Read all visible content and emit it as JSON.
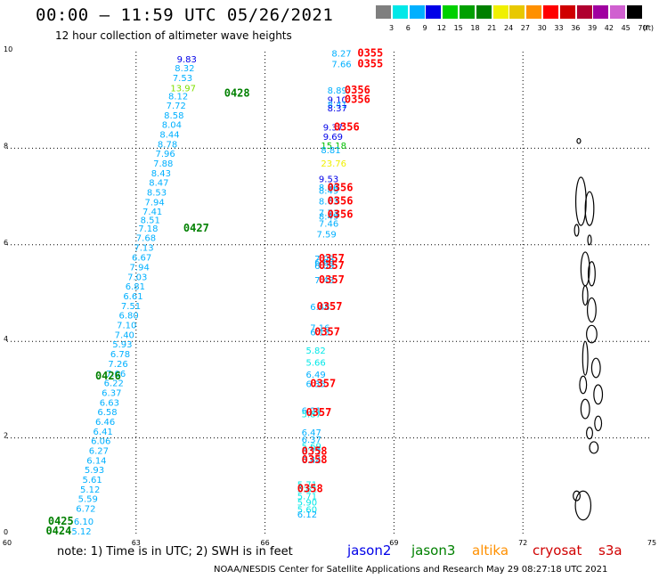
{
  "header": {
    "title": "00:00 – 11:59 UTC 05/26/2021",
    "subtitle": "12 hour collection of altimeter wave heights"
  },
  "color_scale": {
    "labels": [
      "3",
      "6",
      "9",
      "12",
      "15",
      "18",
      "21",
      "24",
      "27",
      "30",
      "33",
      "36",
      "39",
      "42",
      "45",
      "70"
    ],
    "unit": "(ft)",
    "colors": [
      "#7f7f7f",
      "#00e8e8",
      "#00b0ff",
      "#0000e8",
      "#00d000",
      "#00a000",
      "#008000",
      "#f0f000",
      "#e8c800",
      "#ff9000",
      "#ff0000",
      "#d00000",
      "#b00030",
      "#a000a0",
      "#d060d0",
      "#000000"
    ]
  },
  "axes": {
    "x_ticks": [
      "60",
      "63",
      "66",
      "69",
      "72",
      "75"
    ],
    "y_ticks": [
      "0",
      "2",
      "4",
      "6",
      "8",
      "10"
    ],
    "x_range": [
      60,
      75
    ],
    "y_range": [
      0,
      10
    ],
    "grid": "dotted"
  },
  "passes": [
    {
      "label": "0355",
      "x": 68.15,
      "y": 9.9,
      "color": "#ff0000"
    },
    {
      "label": "0355",
      "x": 68.15,
      "y": 9.68,
      "color": "#ff0000"
    },
    {
      "label": "0356",
      "x": 67.85,
      "y": 9.13,
      "color": "#ff0000"
    },
    {
      "label": "0356",
      "x": 67.85,
      "y": 8.94,
      "color": "#ff0000"
    },
    {
      "label": "0356",
      "x": 67.6,
      "y": 8.37,
      "color": "#ff0000"
    },
    {
      "label": "0356",
      "x": 67.45,
      "y": 7.11,
      "color": "#ff0000"
    },
    {
      "label": "0356",
      "x": 67.45,
      "y": 6.84,
      "color": "#ff0000"
    },
    {
      "label": "0356",
      "x": 67.45,
      "y": 6.56,
      "color": "#ff0000"
    },
    {
      "label": "0357",
      "x": 67.25,
      "y": 5.65,
      "color": "#ff0000"
    },
    {
      "label": "0357",
      "x": 67.25,
      "y": 5.5,
      "color": "#ff0000"
    },
    {
      "label": "0357",
      "x": 67.25,
      "y": 5.2,
      "color": "#ff0000"
    },
    {
      "label": "0357",
      "x": 67.2,
      "y": 4.65,
      "color": "#ff0000"
    },
    {
      "label": "0357",
      "x": 67.15,
      "y": 4.12,
      "color": "#ff0000"
    },
    {
      "label": "0357",
      "x": 67.05,
      "y": 3.05,
      "color": "#ff0000"
    },
    {
      "label": "0357",
      "x": 66.95,
      "y": 2.45,
      "color": "#ff0000"
    },
    {
      "label": "0358",
      "x": 66.85,
      "y": 1.65,
      "color": "#ff0000"
    },
    {
      "label": "0358",
      "x": 66.85,
      "y": 1.48,
      "color": "#ff0000"
    },
    {
      "label": "0358",
      "x": 66.75,
      "y": 0.88,
      "color": "#ff0000"
    },
    {
      "label": "0428",
      "x": 65.05,
      "y": 9.07,
      "color": "#008000"
    },
    {
      "label": "0427",
      "x": 64.1,
      "y": 6.27,
      "color": "#008000"
    },
    {
      "label": "0426",
      "x": 62.05,
      "y": 3.21,
      "color": "#008000"
    },
    {
      "label": "0425",
      "x": 60.95,
      "y": 0.2,
      "color": "#008000"
    },
    {
      "label": "0424",
      "x": 60.9,
      "y": 0.0,
      "color": "#008000"
    }
  ],
  "track_a": [
    {
      "v": "9.83",
      "x": 63.95,
      "y": 9.78,
      "color": "#0000e8"
    },
    {
      "v": "8.32",
      "x": 63.9,
      "y": 9.59,
      "color": "#00b0ff"
    },
    {
      "v": "7.53",
      "x": 63.85,
      "y": 9.39,
      "color": "#00b0ff"
    },
    {
      "v": "13.97",
      "x": 63.8,
      "y": 9.18,
      "color": "#7fe000"
    },
    {
      "v": "8.12",
      "x": 63.75,
      "y": 9.01,
      "color": "#00b0ff"
    },
    {
      "v": "7.72",
      "x": 63.7,
      "y": 8.82,
      "color": "#00b0ff"
    },
    {
      "v": "8.58",
      "x": 63.65,
      "y": 8.62,
      "color": "#00b0ff"
    },
    {
      "v": "8.04",
      "x": 63.6,
      "y": 8.42,
      "color": "#00b0ff"
    },
    {
      "v": "8.44",
      "x": 63.55,
      "y": 8.22,
      "color": "#00b0ff"
    },
    {
      "v": "8.78",
      "x": 63.5,
      "y": 8.02,
      "color": "#00b0ff"
    },
    {
      "v": "7.96",
      "x": 63.45,
      "y": 7.82,
      "color": "#00b0ff"
    },
    {
      "v": "7.88",
      "x": 63.4,
      "y": 7.62,
      "color": "#00b0ff"
    },
    {
      "v": "8.43",
      "x": 63.35,
      "y": 7.42,
      "color": "#00b0ff"
    },
    {
      "v": "8.47",
      "x": 63.3,
      "y": 7.22,
      "color": "#00b0ff"
    },
    {
      "v": "8.53",
      "x": 63.25,
      "y": 7.02,
      "color": "#00b0ff"
    },
    {
      "v": "7.94",
      "x": 63.2,
      "y": 6.82,
      "color": "#00b0ff"
    },
    {
      "v": "7.41",
      "x": 63.15,
      "y": 6.62,
      "color": "#00b0ff"
    },
    {
      "v": "8.51",
      "x": 63.1,
      "y": 6.45,
      "color": "#00b0ff"
    },
    {
      "v": "7.18",
      "x": 63.05,
      "y": 6.27,
      "color": "#00b0ff"
    },
    {
      "v": "7.68",
      "x": 63.0,
      "y": 6.08,
      "color": "#00b0ff"
    },
    {
      "v": "7.13",
      "x": 62.95,
      "y": 5.88,
      "color": "#00b0ff"
    },
    {
      "v": "6.67",
      "x": 62.9,
      "y": 5.67,
      "color": "#00b0ff"
    },
    {
      "v": "7.94",
      "x": 62.85,
      "y": 5.47,
      "color": "#00b0ff"
    },
    {
      "v": "7.03",
      "x": 62.8,
      "y": 5.27,
      "color": "#00b0ff"
    },
    {
      "v": "6.81",
      "x": 62.75,
      "y": 5.07,
      "color": "#00b0ff"
    },
    {
      "v": "6.61",
      "x": 62.7,
      "y": 4.87,
      "color": "#00b0ff"
    },
    {
      "v": "7.51",
      "x": 62.65,
      "y": 4.67,
      "color": "#00b0ff"
    },
    {
      "v": "6.80",
      "x": 62.6,
      "y": 4.47,
      "color": "#00b0ff"
    },
    {
      "v": "7.10",
      "x": 62.55,
      "y": 4.27,
      "color": "#00b0ff"
    },
    {
      "v": "7.40",
      "x": 62.5,
      "y": 4.07,
      "color": "#00b0ff"
    },
    {
      "v": "5.93",
      "x": 62.45,
      "y": 3.87,
      "color": "#00b0ff"
    },
    {
      "v": "6.78",
      "x": 62.4,
      "y": 3.67,
      "color": "#00b0ff"
    },
    {
      "v": "7.26",
      "x": 62.35,
      "y": 3.47,
      "color": "#00b0ff"
    },
    {
      "v": "7.06",
      "x": 62.3,
      "y": 3.27,
      "color": "#00b0ff"
    },
    {
      "v": "6.22",
      "x": 62.25,
      "y": 3.07,
      "color": "#00b0ff"
    },
    {
      "v": "6.37",
      "x": 62.2,
      "y": 2.87,
      "color": "#00b0ff"
    },
    {
      "v": "6.63",
      "x": 62.15,
      "y": 2.67,
      "color": "#00b0ff"
    },
    {
      "v": "6.58",
      "x": 62.1,
      "y": 2.47,
      "color": "#00b0ff"
    },
    {
      "v": "6.46",
      "x": 62.05,
      "y": 2.27,
      "color": "#00b0ff"
    },
    {
      "v": "6.41",
      "x": 62.0,
      "y": 2.07,
      "color": "#00b0ff"
    },
    {
      "v": "6.06",
      "x": 61.95,
      "y": 1.87,
      "color": "#00b0ff"
    },
    {
      "v": "6.27",
      "x": 61.9,
      "y": 1.67,
      "color": "#00b0ff"
    },
    {
      "v": "6.14",
      "x": 61.85,
      "y": 1.47,
      "color": "#00b0ff"
    },
    {
      "v": "5.93",
      "x": 61.8,
      "y": 1.27,
      "color": "#00b0ff"
    },
    {
      "v": "5.61",
      "x": 61.75,
      "y": 1.07,
      "color": "#00b0ff"
    },
    {
      "v": "5.12",
      "x": 61.7,
      "y": 0.87,
      "color": "#00b0ff"
    },
    {
      "v": "5.59",
      "x": 61.65,
      "y": 0.67,
      "color": "#00b0ff"
    },
    {
      "v": "6.72",
      "x": 61.6,
      "y": 0.47,
      "color": "#00b0ff"
    },
    {
      "v": "6.10",
      "x": 61.55,
      "y": 0.2,
      "color": "#00b0ff"
    },
    {
      "v": "5.12",
      "x": 61.5,
      "y": 0.0,
      "color": "#00b0ff"
    }
  ],
  "track_b": [
    {
      "v": "8.27",
      "x": 67.55,
      "y": 9.9,
      "color": "#00b0ff"
    },
    {
      "v": "7.66",
      "x": 67.55,
      "y": 9.68,
      "color": "#00b0ff"
    },
    {
      "v": "8.89",
      "x": 67.45,
      "y": 9.13,
      "color": "#00b0ff"
    },
    {
      "v": "9.10",
      "x": 67.45,
      "y": 8.94,
      "color": "#0000e8"
    },
    {
      "v": "8.41",
      "x": 67.45,
      "y": 8.84,
      "color": "#00b0ff"
    },
    {
      "v": "8.37",
      "x": 67.45,
      "y": 8.76,
      "color": "#0000e8"
    },
    {
      "v": "9.37",
      "x": 67.35,
      "y": 8.37,
      "color": "#0000e8"
    },
    {
      "v": "9.69",
      "x": 67.35,
      "y": 8.17,
      "color": "#0000e8"
    },
    {
      "v": "15.18",
      "x": 67.3,
      "y": 7.99,
      "color": "#00c000"
    },
    {
      "v": "8.81",
      "x": 67.3,
      "y": 7.9,
      "color": "#00b0ff"
    },
    {
      "v": "23.76",
      "x": 67.3,
      "y": 7.62,
      "color": "#f0f000"
    },
    {
      "v": "9.53",
      "x": 67.25,
      "y": 7.3,
      "color": "#0000e8"
    },
    {
      "v": "8.86",
      "x": 67.25,
      "y": 7.12,
      "color": "#00b0ff"
    },
    {
      "v": "8.49",
      "x": 67.25,
      "y": 7.06,
      "color": "#00b0ff"
    },
    {
      "v": "8.63",
      "x": 67.25,
      "y": 6.84,
      "color": "#00b0ff"
    },
    {
      "v": "7.73",
      "x": 67.25,
      "y": 6.6,
      "color": "#00b0ff"
    },
    {
      "v": "8.49",
      "x": 67.25,
      "y": 6.52,
      "color": "#00b0ff"
    },
    {
      "v": "7.46",
      "x": 67.25,
      "y": 6.37,
      "color": "#00b0ff"
    },
    {
      "v": "7.59",
      "x": 67.2,
      "y": 6.15,
      "color": "#00b0ff"
    },
    {
      "v": "7.08",
      "x": 67.15,
      "y": 5.65,
      "color": "#00b0ff"
    },
    {
      "v": "6.65",
      "x": 67.15,
      "y": 5.57,
      "color": "#00b0ff"
    },
    {
      "v": "6.09",
      "x": 67.15,
      "y": 5.5,
      "color": "#00b0ff"
    },
    {
      "v": "7.43",
      "x": 67.15,
      "y": 5.2,
      "color": "#00b0ff"
    },
    {
      "v": "6.48",
      "x": 67.05,
      "y": 4.65,
      "color": "#00b0ff"
    },
    {
      "v": "7.16",
      "x": 67.05,
      "y": 4.22,
      "color": "#00b0ff"
    },
    {
      "v": "6.13",
      "x": 67.05,
      "y": 4.12,
      "color": "#00b0ff"
    },
    {
      "v": "5.82",
      "x": 66.95,
      "y": 3.75,
      "color": "#00e8e8"
    },
    {
      "v": "5.66",
      "x": 66.95,
      "y": 3.5,
      "color": "#00e8e8"
    },
    {
      "v": "6.49",
      "x": 66.95,
      "y": 3.25,
      "color": "#00b0ff"
    },
    {
      "v": "6.35",
      "x": 66.95,
      "y": 3.05,
      "color": "#00b0ff"
    },
    {
      "v": "6.21",
      "x": 66.85,
      "y": 2.5,
      "color": "#00b0ff"
    },
    {
      "v": "5.87",
      "x": 66.85,
      "y": 2.43,
      "color": "#00e8e8"
    },
    {
      "v": "6.47",
      "x": 66.85,
      "y": 2.05,
      "color": "#00b0ff"
    },
    {
      "v": "6.37",
      "x": 66.85,
      "y": 1.9,
      "color": "#00b0ff"
    },
    {
      "v": "5.69",
      "x": 66.85,
      "y": 1.76,
      "color": "#00e8e8"
    },
    {
      "v": "6.72",
      "x": 66.85,
      "y": 1.65,
      "color": "#00b0ff"
    },
    {
      "v": "6.44",
      "x": 66.85,
      "y": 1.48,
      "color": "#00b0ff"
    },
    {
      "v": "5.71",
      "x": 66.75,
      "y": 0.97,
      "color": "#00e8e8"
    },
    {
      "v": "5.81",
      "x": 66.75,
      "y": 0.88,
      "color": "#00e8e8"
    },
    {
      "v": "5.71",
      "x": 66.75,
      "y": 0.73,
      "color": "#00e8e8"
    },
    {
      "v": "5.90",
      "x": 66.75,
      "y": 0.6,
      "color": "#00e8e8"
    },
    {
      "v": "5.60",
      "x": 66.75,
      "y": 0.45,
      "color": "#00e8e8"
    },
    {
      "v": "6.12",
      "x": 66.75,
      "y": 0.35,
      "color": "#00b0ff"
    }
  ],
  "notes": {
    "note_text": "note:  1) Time is in UTC;  2) SWH is in feet",
    "footer_text": "NOAA/NESDIS Center for Satellite Applications and Research     May 29 08:27:18 UTC 2021"
  },
  "satellites": [
    {
      "name": "jason2",
      "color": "#0000e8"
    },
    {
      "name": "jason3",
      "color": "#008000"
    },
    {
      "name": "altika",
      "color": "#ff9000"
    },
    {
      "name": "cryosat",
      "color": "#d00000"
    },
    {
      "name": "s3a",
      "color": "#d00000"
    }
  ]
}
